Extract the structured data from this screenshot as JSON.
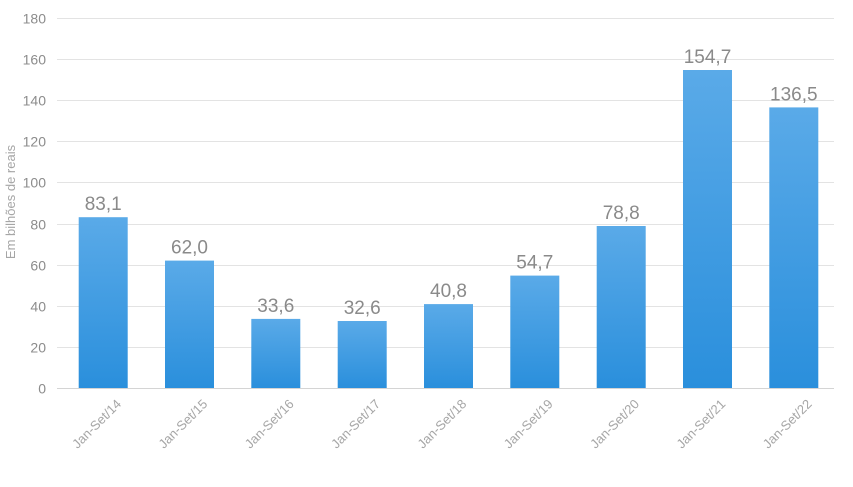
{
  "chart_data": {
    "type": "bar",
    "ylabel": "Em bilhões de reais",
    "categories": [
      "Jan-Set/14",
      "Jan-Set/15",
      "Jan-Set/16",
      "Jan-Set/17",
      "Jan-Set/18",
      "Jan-Set/19",
      "Jan-Set/20",
      "Jan-Set/21",
      "Jan-Set/22"
    ],
    "values": [
      83.1,
      62.0,
      33.6,
      32.6,
      40.8,
      54.7,
      78.8,
      154.7,
      136.5
    ],
    "value_labels": [
      "83,1",
      "62,0",
      "33,6",
      "32,6",
      "40,8",
      "54,7",
      "78,8",
      "154,7",
      "136,5"
    ],
    "yticks": [
      0,
      20,
      40,
      60,
      80,
      100,
      120,
      140,
      160,
      180
    ],
    "ylim": [
      0,
      180
    ],
    "grid": true,
    "legend": "none",
    "colors": {
      "bar_top": "#5aaae8",
      "bar_bottom": "#2a8fdc"
    }
  }
}
